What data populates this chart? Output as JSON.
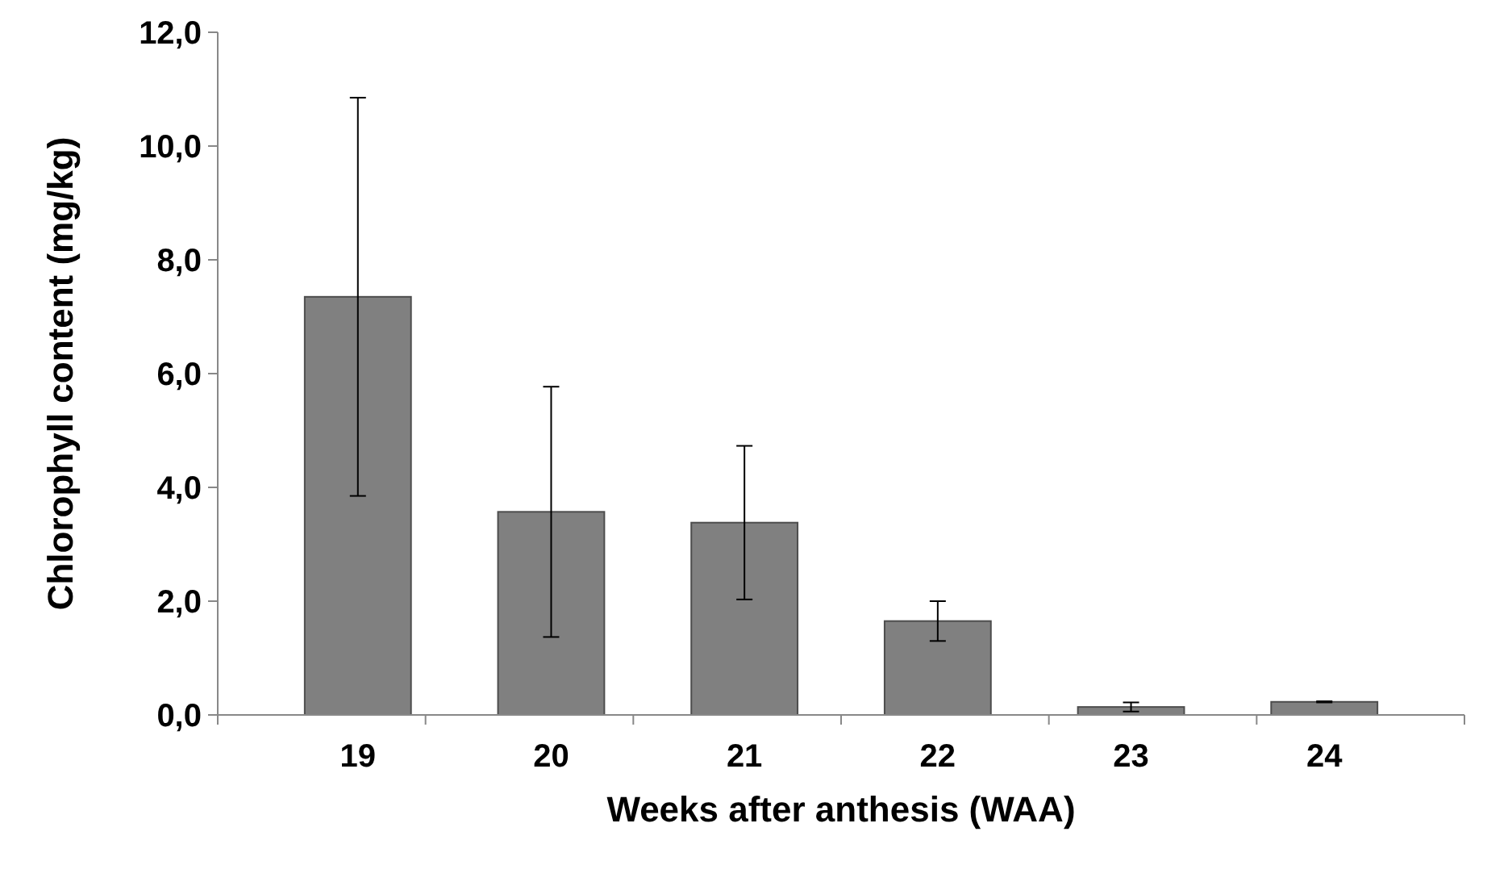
{
  "chart_data": {
    "type": "bar",
    "xlabel": "Weeks after anthesis (WAA)",
    "ylabel": "Chlorophyll content (mg/kg)",
    "categories": [
      "19",
      "20",
      "21",
      "22",
      "23",
      "24"
    ],
    "values": [
      7.35,
      3.57,
      3.38,
      1.65,
      0.14,
      0.23
    ],
    "errors": [
      3.5,
      2.2,
      1.35,
      0.35,
      0.08,
      0.01
    ],
    "color": "#808080",
    "ylim": [
      0,
      12
    ],
    "yticks": [
      {
        "value": 0,
        "label": "0,0"
      },
      {
        "value": 2,
        "label": "2,0"
      },
      {
        "value": 4,
        "label": "4,0"
      },
      {
        "value": 6,
        "label": "6,0"
      },
      {
        "value": 8,
        "label": "8,0"
      },
      {
        "value": 10,
        "label": "10,0"
      },
      {
        "value": 12,
        "label": "12,0"
      }
    ],
    "grid": false
  }
}
